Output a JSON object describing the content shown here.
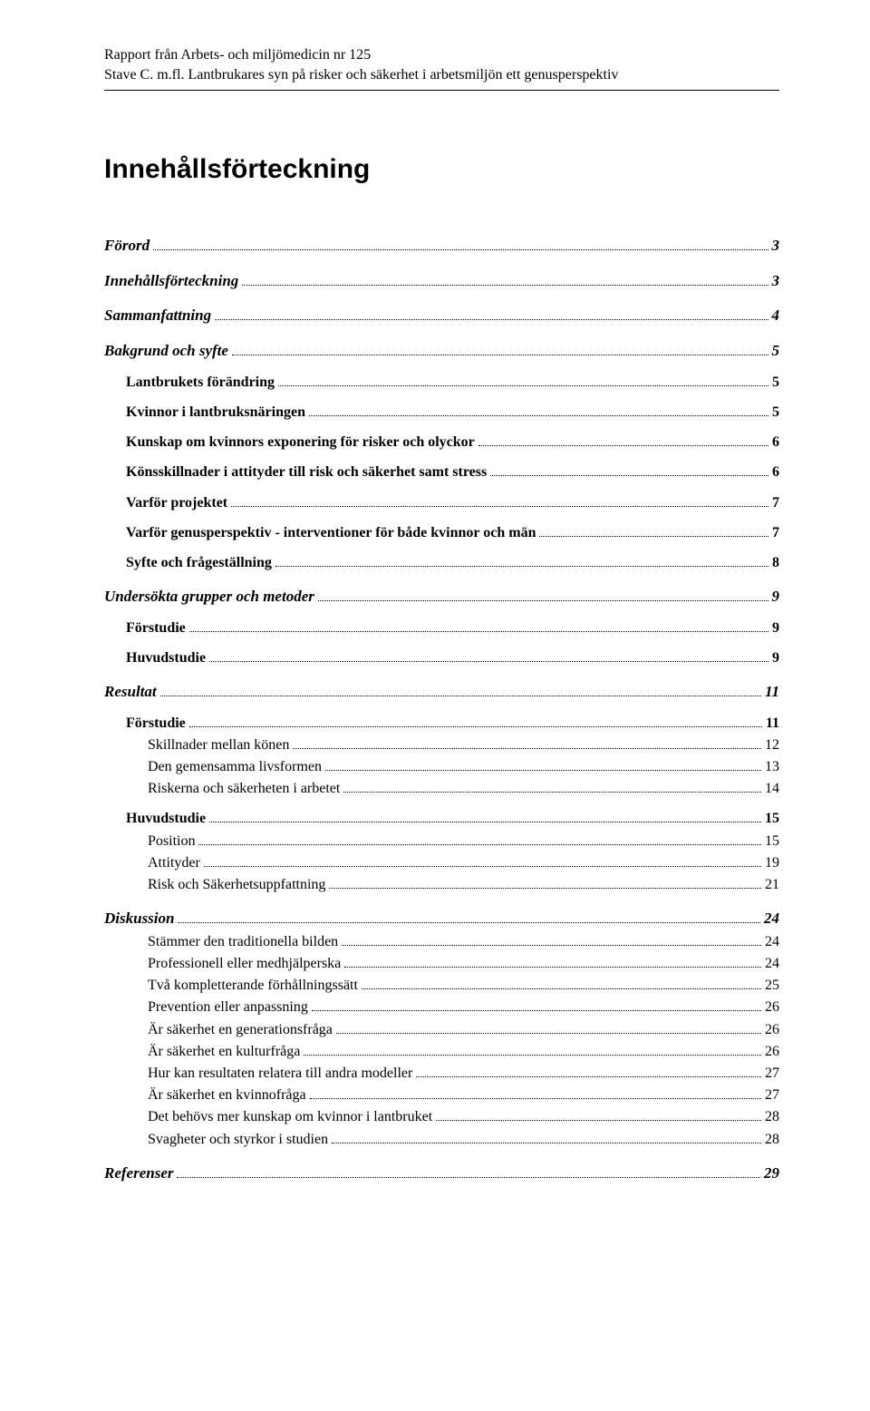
{
  "header": {
    "line1": "Rapport från Arbets- och miljömedicin nr 125",
    "line2": "Stave C. m.fl. Lantbrukares syn på risker och säkerhet i arbetsmiljön ett genusperspektiv"
  },
  "title": "Innehållsförteckning",
  "toc": [
    {
      "level": 0,
      "label": "Förord",
      "page": "3"
    },
    {
      "level": 0,
      "label": "Innehållsförteckning",
      "page": "3"
    },
    {
      "level": 0,
      "label": "Sammanfattning",
      "page": "4"
    },
    {
      "level": 0,
      "label": "Bakgrund och syfte",
      "page": "5"
    },
    {
      "level": 1,
      "label": "Lantbrukets förändring",
      "page": "5"
    },
    {
      "level": 1,
      "label": "Kvinnor i lantbruksnäringen",
      "page": "5"
    },
    {
      "level": 1,
      "label": "Kunskap om kvinnors exponering för risker och olyckor",
      "page": "6"
    },
    {
      "level": 1,
      "label": "Könsskillnader i attityder till risk och säkerhet samt stress",
      "page": "6"
    },
    {
      "level": 1,
      "label": "Varför projektet",
      "page": "7"
    },
    {
      "level": 1,
      "label": "Varför genusperspektiv - interventioner för både kvinnor och män",
      "page": "7"
    },
    {
      "level": 1,
      "label": "Syfte och frågeställning",
      "page": "8"
    },
    {
      "level": 0,
      "label": "Undersökta grupper och metoder",
      "page": "9"
    },
    {
      "level": 1,
      "label": "Förstudie",
      "page": "9"
    },
    {
      "level": 1,
      "label": "Huvudstudie",
      "page": "9"
    },
    {
      "level": 0,
      "label": "Resultat",
      "page": "11"
    },
    {
      "level": 1,
      "label": "Förstudie",
      "page": "11"
    },
    {
      "level": 2,
      "label": "Skillnader mellan könen",
      "page": "12"
    },
    {
      "level": 2,
      "label": "Den gemensamma livsformen",
      "page": "13"
    },
    {
      "level": 2,
      "label": "Riskerna och säkerheten i arbetet",
      "page": "14"
    },
    {
      "level": 1,
      "label": "Huvudstudie",
      "page": "15"
    },
    {
      "level": 2,
      "label": "Position",
      "page": "15"
    },
    {
      "level": 2,
      "label": "Attityder",
      "page": "19"
    },
    {
      "level": 2,
      "label": "Risk och Säkerhetsuppfattning",
      "page": "21"
    },
    {
      "level": 0,
      "label": "Diskussion",
      "page": "24"
    },
    {
      "level": 2,
      "label": "Stämmer den traditionella bilden",
      "page": "24"
    },
    {
      "level": 2,
      "label": "Professionell eller medhjälperska",
      "page": "24"
    },
    {
      "level": 2,
      "label": "Två kompletterande förhållningssätt",
      "page": "25"
    },
    {
      "level": 2,
      "label": "Prevention eller anpassning",
      "page": "26"
    },
    {
      "level": 2,
      "label": "Är säkerhet en generationsfråga",
      "page": "26"
    },
    {
      "level": 2,
      "label": "Är säkerhet en kulturfråga",
      "page": "26"
    },
    {
      "level": 2,
      "label": "Hur kan resultaten relatera till andra modeller",
      "page": "27"
    },
    {
      "level": 2,
      "label": "Är säkerhet en kvinnofråga",
      "page": "27"
    },
    {
      "level": 2,
      "label": "Det behövs mer kunskap om kvinnor i lantbruket",
      "page": "28"
    },
    {
      "level": 2,
      "label": "Svagheter och styrkor i studien",
      "page": "28"
    },
    {
      "level": 0,
      "label": "Referenser",
      "page": "29"
    }
  ]
}
